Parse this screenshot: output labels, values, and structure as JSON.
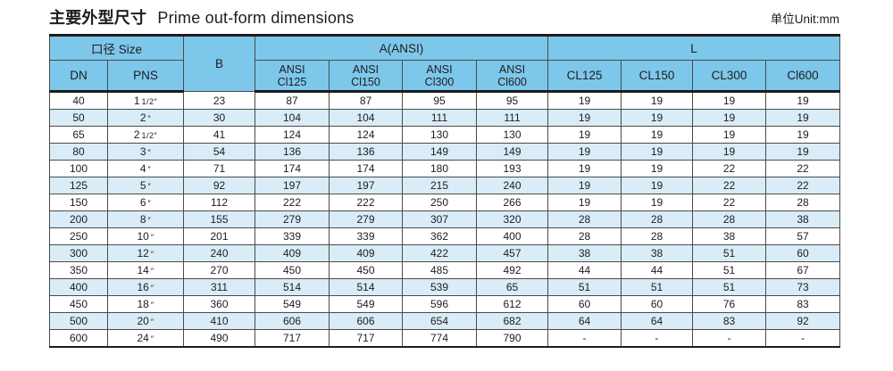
{
  "page": {
    "title_zh": "主要外型尺寸",
    "title_en": "Prime out-form dimensions",
    "unit_label": "单位Unit:mm"
  },
  "table": {
    "header": {
      "size_group": "口径 Size",
      "dn": "DN",
      "pns": "PNS",
      "b": "B",
      "a_group": "A(ANSI)",
      "a_cols": [
        [
          "ANSI",
          "Cl125"
        ],
        [
          "ANSI",
          "Cl150"
        ],
        [
          "ANSI",
          "Cl300"
        ],
        [
          "ANSI",
          "Cl600"
        ]
      ],
      "l_group": "L",
      "l_cols": [
        "CL125",
        "CL150",
        "CL300",
        "Cl600"
      ]
    },
    "colors": {
      "header_bg": "#7dc7eb",
      "stripe_bg": "#d9ecf7",
      "border_dark": "#1c1c1c",
      "grid_line": "#4b4b4b"
    },
    "rows": [
      {
        "dn": "40",
        "pns": {
          "main": "1",
          "small": "1/2″"
        },
        "b": "23",
        "a": [
          "87",
          "87",
          "95",
          "95"
        ],
        "l": [
          "19",
          "19",
          "19",
          "19"
        ]
      },
      {
        "dn": "50",
        "pns": {
          "main": "2",
          "small": "″"
        },
        "b": "30",
        "a": [
          "104",
          "104",
          "111",
          "111"
        ],
        "l": [
          "19",
          "19",
          "19",
          "19"
        ]
      },
      {
        "dn": "65",
        "pns": {
          "main": "2",
          "small": "1/2″"
        },
        "b": "41",
        "a": [
          "124",
          "124",
          "130",
          "130"
        ],
        "l": [
          "19",
          "19",
          "19",
          "19"
        ]
      },
      {
        "dn": "80",
        "pns": {
          "main": "3",
          "small": "″"
        },
        "b": "54",
        "a": [
          "136",
          "136",
          "149",
          "149"
        ],
        "l": [
          "19",
          "19",
          "19",
          "19"
        ]
      },
      {
        "dn": "100",
        "pns": {
          "main": "4",
          "small": "″"
        },
        "b": "71",
        "a": [
          "174",
          "174",
          "180",
          "193"
        ],
        "l": [
          "19",
          "19",
          "22",
          "22"
        ]
      },
      {
        "dn": "125",
        "pns": {
          "main": "5",
          "small": "″"
        },
        "b": "92",
        "a": [
          "197",
          "197",
          "215",
          "240"
        ],
        "l": [
          "19",
          "19",
          "22",
          "22"
        ]
      },
      {
        "dn": "150",
        "pns": {
          "main": "6",
          "small": "″"
        },
        "b": "112",
        "a": [
          "222",
          "222",
          "250",
          "266"
        ],
        "l": [
          "19",
          "19",
          "22",
          "28"
        ]
      },
      {
        "dn": "200",
        "pns": {
          "main": "8",
          "small": "″"
        },
        "b": "155",
        "a": [
          "279",
          "279",
          "307",
          "320"
        ],
        "l": [
          "28",
          "28",
          "28",
          "38"
        ]
      },
      {
        "dn": "250",
        "pns": {
          "main": "10",
          "small": "″"
        },
        "b": "201",
        "a": [
          "339",
          "339",
          "362",
          "400"
        ],
        "l": [
          "28",
          "28",
          "38",
          "57"
        ]
      },
      {
        "dn": "300",
        "pns": {
          "main": "12",
          "small": "″"
        },
        "b": "240",
        "a": [
          "409",
          "409",
          "422",
          "457"
        ],
        "l": [
          "38",
          "38",
          "51",
          "60"
        ]
      },
      {
        "dn": "350",
        "pns": {
          "main": "14",
          "small": "″"
        },
        "b": "270",
        "a": [
          "450",
          "450",
          "485",
          "492"
        ],
        "l": [
          "44",
          "44",
          "51",
          "67"
        ]
      },
      {
        "dn": "400",
        "pns": {
          "main": "16",
          "small": "″"
        },
        "b": "311",
        "a": [
          "514",
          "514",
          "539",
          "65"
        ],
        "l": [
          "51",
          "51",
          "51",
          "73"
        ]
      },
      {
        "dn": "450",
        "pns": {
          "main": "18",
          "small": "″"
        },
        "b": "360",
        "a": [
          "549",
          "549",
          "596",
          "612"
        ],
        "l": [
          "60",
          "60",
          "76",
          "83"
        ]
      },
      {
        "dn": "500",
        "pns": {
          "main": "20",
          "small": "″"
        },
        "b": "410",
        "a": [
          "606",
          "606",
          "654",
          "682"
        ],
        "l": [
          "64",
          "64",
          "83",
          "92"
        ]
      },
      {
        "dn": "600",
        "pns": {
          "main": "24",
          "small": "″"
        },
        "b": "490",
        "a": [
          "717",
          "717",
          "774",
          "790"
        ],
        "l": [
          "-",
          "-",
          "-",
          "-"
        ]
      }
    ]
  }
}
